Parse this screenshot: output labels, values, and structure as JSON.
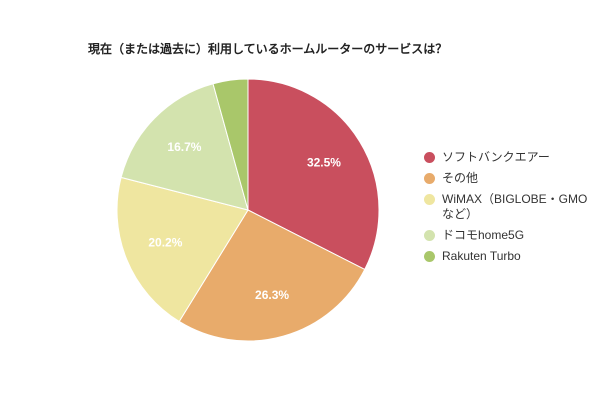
{
  "chart_data": {
    "type": "pie",
    "title": "現在（または過去に）利用しているホームルーターのサービスは？",
    "categories": [
      "ソフトバンクエアー",
      "その他",
      "WiMAX（BIGLOBE・GMOなど）",
      "ドコモhome5G",
      "Rakuten Turbo"
    ],
    "values": [
      32.5,
      26.3,
      20.2,
      16.7,
      4.3
    ],
    "value_labels": [
      "32.5%",
      "26.3%",
      "20.2%",
      "16.7%",
      null
    ],
    "colors": [
      "#c94f5e",
      "#e8ab6b",
      "#efe6a0",
      "#d3e3ae",
      "#a9c76a"
    ],
    "legend": "right"
  }
}
